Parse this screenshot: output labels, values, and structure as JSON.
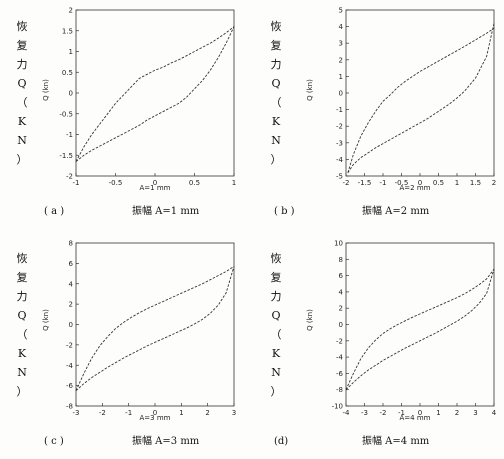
{
  "chart_data": [
    {
      "type": "line",
      "ylabel_side": "恢复力Q（KN）",
      "ylabel": "Q (kn)",
      "xlabel": "A=1 mm",
      "caption_letter": "( a )",
      "caption_text": "振幅 A=1 mm",
      "xlim": [
        -1,
        1
      ],
      "ylim": [
        -2,
        2
      ],
      "xticks": [
        -1,
        -0.5,
        0,
        0.5,
        1
      ],
      "yticks": [
        -2,
        -1.5,
        -1,
        -0.5,
        0,
        0.5,
        1,
        1.5,
        2
      ],
      "series": [
        {
          "x": [
            -1,
            -0.9,
            -0.8,
            -0.7,
            -0.6,
            -0.5,
            -0.4,
            -0.3,
            -0.2,
            -0.1,
            0,
            0.1,
            0.2,
            0.3,
            0.4,
            0.5,
            0.6,
            0.7,
            0.8,
            0.9,
            1
          ],
          "y": [
            -1.65,
            -1.3,
            -1.0,
            -0.75,
            -0.5,
            -0.25,
            -0.05,
            0.15,
            0.35,
            0.45,
            0.55,
            0.62,
            0.72,
            0.8,
            0.9,
            1.0,
            1.1,
            1.2,
            1.32,
            1.45,
            1.6
          ]
        },
        {
          "x": [
            -1,
            -0.9,
            -0.8,
            -0.7,
            -0.6,
            -0.5,
            -0.4,
            -0.3,
            -0.2,
            -0.1,
            0,
            0.1,
            0.2,
            0.3,
            0.4,
            0.5,
            0.6,
            0.7,
            0.8,
            0.9,
            1
          ],
          "y": [
            -1.65,
            -1.5,
            -1.38,
            -1.28,
            -1.18,
            -1.08,
            -0.98,
            -0.88,
            -0.78,
            -0.65,
            -0.55,
            -0.45,
            -0.35,
            -0.25,
            -0.1,
            0.1,
            0.3,
            0.55,
            0.85,
            1.2,
            1.6
          ]
        }
      ]
    },
    {
      "type": "line",
      "ylabel_side": "恢复力Q（KN）",
      "ylabel": "Q (kn)",
      "xlabel": "A=2 mm",
      "caption_letter": "( b )",
      "caption_text": "振幅 A=2 mm",
      "xlim": [
        -2,
        2
      ],
      "ylim": [
        -5,
        5
      ],
      "xticks": [
        -2,
        -1.5,
        -1,
        -0.5,
        0,
        0.5,
        1,
        1.5,
        2
      ],
      "yticks": [
        -5,
        -4,
        -3,
        -2,
        -1,
        0,
        1,
        2,
        3,
        4,
        5
      ],
      "series": [
        {
          "x": [
            -1.95,
            -1.8,
            -1.6,
            -1.4,
            -1.2,
            -1,
            -0.8,
            -0.6,
            -0.4,
            -0.2,
            0,
            0.2,
            0.4,
            0.6,
            0.8,
            1,
            1.2,
            1.5,
            1.8,
            2
          ],
          "y": [
            -4.8,
            -3.7,
            -2.6,
            -1.8,
            -1.1,
            -0.5,
            -0.1,
            0.35,
            0.7,
            1.0,
            1.3,
            1.55,
            1.8,
            2.05,
            2.3,
            2.55,
            2.8,
            3.2,
            3.6,
            3.9
          ]
        },
        {
          "x": [
            -1.95,
            -1.8,
            -1.6,
            -1.4,
            -1.2,
            -1,
            -0.8,
            -0.6,
            -0.4,
            -0.2,
            0,
            0.2,
            0.4,
            0.6,
            0.8,
            1,
            1.2,
            1.5,
            1.8,
            2
          ],
          "y": [
            -4.8,
            -4.3,
            -3.9,
            -3.6,
            -3.3,
            -3.05,
            -2.8,
            -2.55,
            -2.3,
            -2.05,
            -1.8,
            -1.55,
            -1.25,
            -0.95,
            -0.65,
            -0.3,
            0.1,
            0.9,
            2.2,
            4.2
          ]
        }
      ]
    },
    {
      "type": "line",
      "ylabel_side": "恢复力Q（KN）",
      "ylabel": "Q (kn)",
      "xlabel": "A=3 mm",
      "caption_letter": "( c )",
      "caption_text": "振幅 A=3 mm",
      "xlim": [
        -3,
        3
      ],
      "ylim": [
        -8,
        8
      ],
      "xticks": [
        -3,
        -2,
        -1,
        0,
        1,
        2,
        3
      ],
      "yticks": [
        -8,
        -6,
        -4,
        -2,
        0,
        2,
        4,
        6,
        8
      ],
      "series": [
        {
          "x": [
            -3,
            -2.7,
            -2.4,
            -2.1,
            -1.8,
            -1.5,
            -1.2,
            -0.9,
            -0.6,
            -0.3,
            0,
            0.3,
            0.6,
            0.9,
            1.2,
            1.5,
            1.8,
            2.1,
            2.4,
            2.7,
            3
          ],
          "y": [
            -6.5,
            -4.8,
            -3.3,
            -2.1,
            -1.2,
            -0.4,
            0.2,
            0.7,
            1.15,
            1.55,
            1.9,
            2.25,
            2.6,
            2.95,
            3.3,
            3.65,
            4.0,
            4.4,
            4.8,
            5.2,
            5.7
          ]
        },
        {
          "x": [
            -3,
            -2.7,
            -2.4,
            -2.1,
            -1.8,
            -1.5,
            -1.2,
            -0.9,
            -0.6,
            -0.3,
            0,
            0.3,
            0.6,
            0.9,
            1.2,
            1.5,
            1.8,
            2.1,
            2.4,
            2.7,
            3
          ],
          "y": [
            -6.5,
            -5.8,
            -5.2,
            -4.7,
            -4.2,
            -3.75,
            -3.3,
            -2.9,
            -2.5,
            -2.1,
            -1.75,
            -1.4,
            -1.05,
            -0.7,
            -0.35,
            0.05,
            0.5,
            1.1,
            1.9,
            3.1,
            5.7
          ]
        }
      ]
    },
    {
      "type": "line",
      "ylabel_side": "恢复力Q（KN）",
      "ylabel": "Q (kn)",
      "xlabel": "A=4 mm",
      "caption_letter": "(d)",
      "caption_text": "振幅 A=4 mm",
      "xlim": [
        -4,
        4
      ],
      "ylim": [
        -10,
        10
      ],
      "xticks": [
        -4,
        -3,
        -2,
        -1,
        0,
        1,
        2,
        3,
        4
      ],
      "yticks": [
        -10,
        -8,
        -6,
        -4,
        -2,
        0,
        2,
        4,
        6,
        8,
        10
      ],
      "series": [
        {
          "x": [
            -4,
            -3.6,
            -3.2,
            -2.8,
            -2.4,
            -2,
            -1.6,
            -1.2,
            -0.8,
            -0.4,
            0,
            0.4,
            0.8,
            1.2,
            1.6,
            2,
            2.4,
            2.8,
            3.2,
            3.6,
            4
          ],
          "y": [
            -8.0,
            -6.0,
            -4.2,
            -2.9,
            -1.9,
            -1.1,
            -0.5,
            0.0,
            0.45,
            0.9,
            1.3,
            1.7,
            2.1,
            2.5,
            2.9,
            3.3,
            3.75,
            4.3,
            4.9,
            5.6,
            6.8
          ]
        },
        {
          "x": [
            -4,
            -3.6,
            -3.2,
            -2.8,
            -2.4,
            -2,
            -1.6,
            -1.2,
            -0.8,
            -0.4,
            0,
            0.4,
            0.8,
            1.2,
            1.6,
            2,
            2.4,
            2.8,
            3.2,
            3.6,
            4
          ],
          "y": [
            -8.0,
            -7.1,
            -6.3,
            -5.6,
            -5.0,
            -4.4,
            -3.9,
            -3.4,
            -2.9,
            -2.45,
            -2.0,
            -1.55,
            -1.1,
            -0.6,
            -0.1,
            0.4,
            1.0,
            1.7,
            2.6,
            3.8,
            6.8
          ]
        }
      ]
    }
  ]
}
